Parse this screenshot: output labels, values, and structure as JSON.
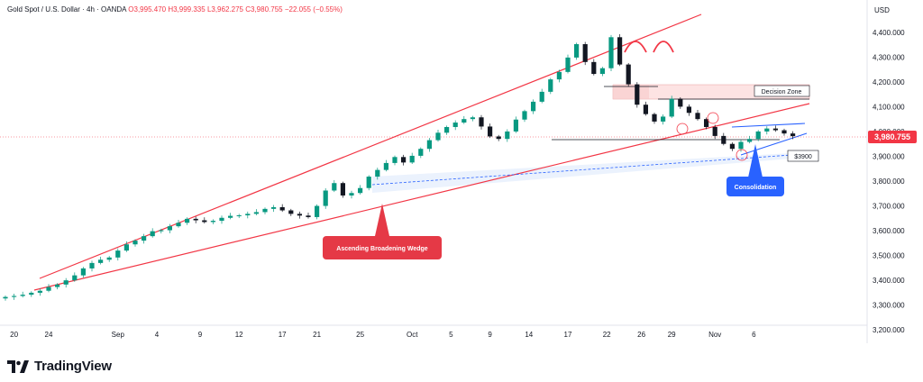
{
  "header": {
    "symbol": "Gold Spot / U.S. Dollar · 4h · OANDA",
    "open": "O3,995.470",
    "high": "H3,999.335",
    "low": "L3,962.275",
    "close": "C3,980.755",
    "change": "−22.055 (−0.55%)"
  },
  "currency_label": "USD",
  "last_price_label": "3,980.755",
  "brand": {
    "name": "TradingView"
  },
  "annotations": {
    "wedge": "Ascending Broadening Wedge",
    "consolidation": "Consolidation",
    "decision_zone": "Decision Zone",
    "level_3900": "$3900"
  },
  "colors": {
    "up": "#089981",
    "down": "#131722",
    "trendline": "#f23645",
    "wedge_label_bg": "#e53946",
    "consolidation_bg": "#2962ff",
    "zone_fill": "#fde3e3",
    "price_tag": "#f23645"
  },
  "chart_data": {
    "type": "candlestick",
    "ylim": [
      3150,
      4530
    ],
    "y_ticks": [
      "4,400.000",
      "4,300.000",
      "4,200.000",
      "4,100.000",
      "4,000.000",
      "3,900.000",
      "3,800.000",
      "3,700.000",
      "3,600.000",
      "3,500.000",
      "3,400.000",
      "3,300.000",
      "3,200.000"
    ],
    "y_tick_values": [
      4400,
      4300,
      4200,
      4100,
      4000,
      3900,
      3800,
      3700,
      3600,
      3500,
      3400,
      3300,
      3200
    ],
    "x_ticks": [
      "20",
      "24",
      "Sep",
      "4",
      "9",
      "12",
      "17",
      "21",
      "25",
      "Oct",
      "5",
      "9",
      "14",
      "17",
      "22",
      "26",
      "29",
      "Nov",
      "6"
    ],
    "x_tick_pos": [
      1,
      5,
      13,
      17.5,
      22.5,
      27,
      32,
      36,
      41,
      47,
      51.5,
      56,
      60.5,
      65,
      69.5,
      73.5,
      77,
      82,
      86.5
    ],
    "closes": [
      3333,
      3337,
      3342,
      3350,
      3358,
      3373,
      3383,
      3400,
      3420,
      3448,
      3470,
      3483,
      3492,
      3520,
      3545,
      3560,
      3578,
      3598,
      3602,
      3618,
      3632,
      3648,
      3642,
      3635,
      3640,
      3652,
      3660,
      3662,
      3668,
      3675,
      3688,
      3695,
      3682,
      3668,
      3661,
      3655,
      3700,
      3762,
      3792,
      3742,
      3752,
      3772,
      3818,
      3845,
      3873,
      3897,
      3875,
      3902,
      3930,
      3965,
      3995,
      4018,
      4036,
      4050,
      4057,
      4020,
      3980,
      3970,
      4000,
      4048,
      4082,
      4120,
      4160,
      4210,
      4240,
      4298,
      4352,
      4280,
      4232,
      4255,
      4380,
      4270,
      4190,
      4108,
      4070,
      4040,
      4060,
      4132,
      4100,
      4075,
      4050,
      4018,
      3982,
      3950,
      3930,
      3958,
      3970,
      4000,
      4012,
      4005,
      3992,
      3981
    ]
  }
}
